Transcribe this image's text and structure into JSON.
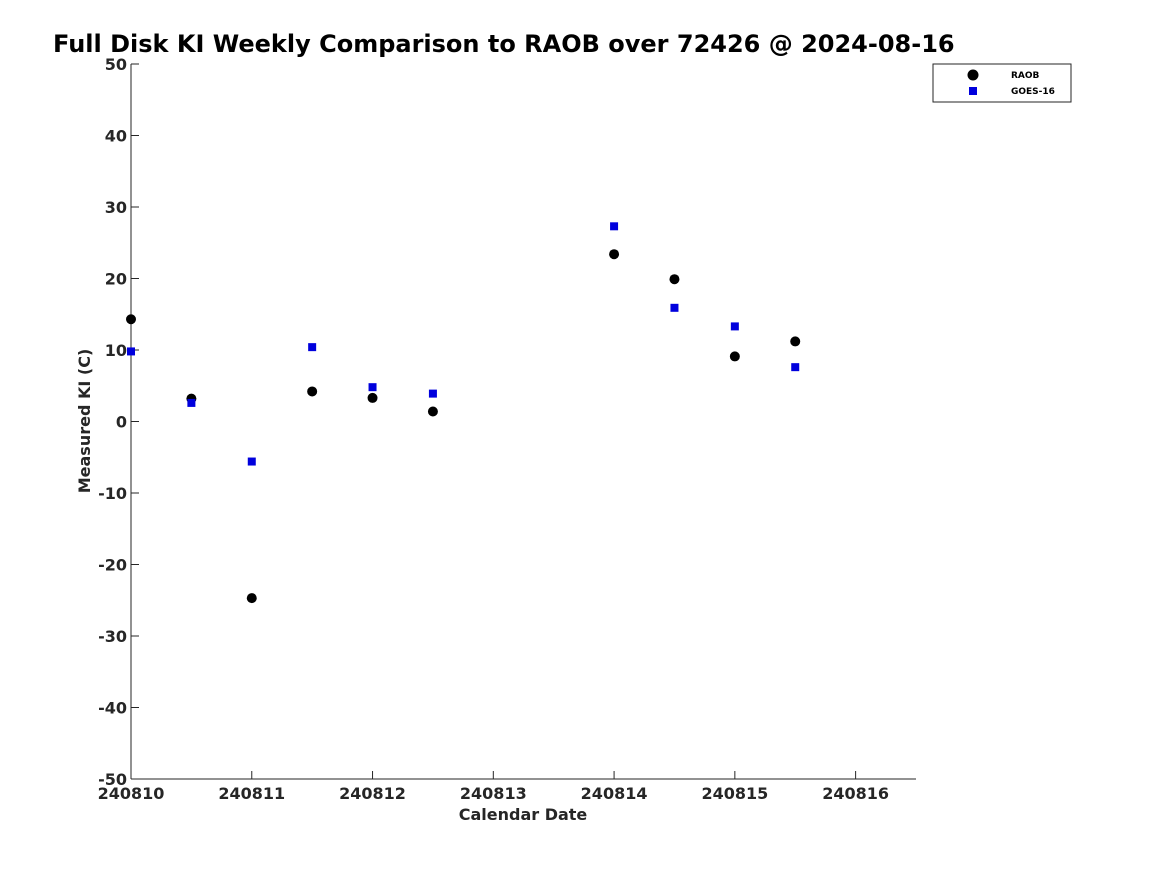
{
  "chart_data": {
    "type": "scatter",
    "title": "Full Disk KI Weekly Comparison to RAOB over 72426 @ 2024-08-16",
    "xlabel": "Calendar Date",
    "ylabel": "Measured KI (C)",
    "xlim": [
      "2024-08-10",
      "2024-08-16 12:00"
    ],
    "ylim": [
      -50,
      50
    ],
    "x_ticks": [
      "240810",
      "240811",
      "240812",
      "240813",
      "240814",
      "240815",
      "240816"
    ],
    "y_ticks": [
      50,
      40,
      30,
      20,
      10,
      0,
      -10,
      -20,
      -30,
      -40,
      -50
    ],
    "grid": false,
    "legend_position": "top-right",
    "series": [
      {
        "name": "RAOB",
        "marker": "circle",
        "color": "#000000",
        "points": [
          {
            "x": "2024-08-10 00:00",
            "y": 14.3
          },
          {
            "x": "2024-08-10 12:00",
            "y": 3.2
          },
          {
            "x": "2024-08-11 00:00",
            "y": -24.7
          },
          {
            "x": "2024-08-11 12:00",
            "y": 4.2
          },
          {
            "x": "2024-08-12 00:00",
            "y": 3.3
          },
          {
            "x": "2024-08-12 12:00",
            "y": 1.4
          },
          {
            "x": "2024-08-14 00:00",
            "y": 23.4
          },
          {
            "x": "2024-08-14 12:00",
            "y": 19.9
          },
          {
            "x": "2024-08-15 00:00",
            "y": 9.1
          },
          {
            "x": "2024-08-15 12:00",
            "y": 11.2
          }
        ]
      },
      {
        "name": "GOES-16",
        "marker": "square",
        "color": "#0000dd",
        "points": [
          {
            "x": "2024-08-10 00:00",
            "y": 9.8
          },
          {
            "x": "2024-08-10 12:00",
            "y": 2.6
          },
          {
            "x": "2024-08-11 00:00",
            "y": -5.6
          },
          {
            "x": "2024-08-11 12:00",
            "y": 10.4
          },
          {
            "x": "2024-08-12 00:00",
            "y": 4.8
          },
          {
            "x": "2024-08-12 12:00",
            "y": 3.9
          },
          {
            "x": "2024-08-14 00:00",
            "y": 27.3
          },
          {
            "x": "2024-08-14 12:00",
            "y": 15.9
          },
          {
            "x": "2024-08-15 00:00",
            "y": 13.3
          },
          {
            "x": "2024-08-15 12:00",
            "y": 7.6
          }
        ]
      }
    ]
  }
}
